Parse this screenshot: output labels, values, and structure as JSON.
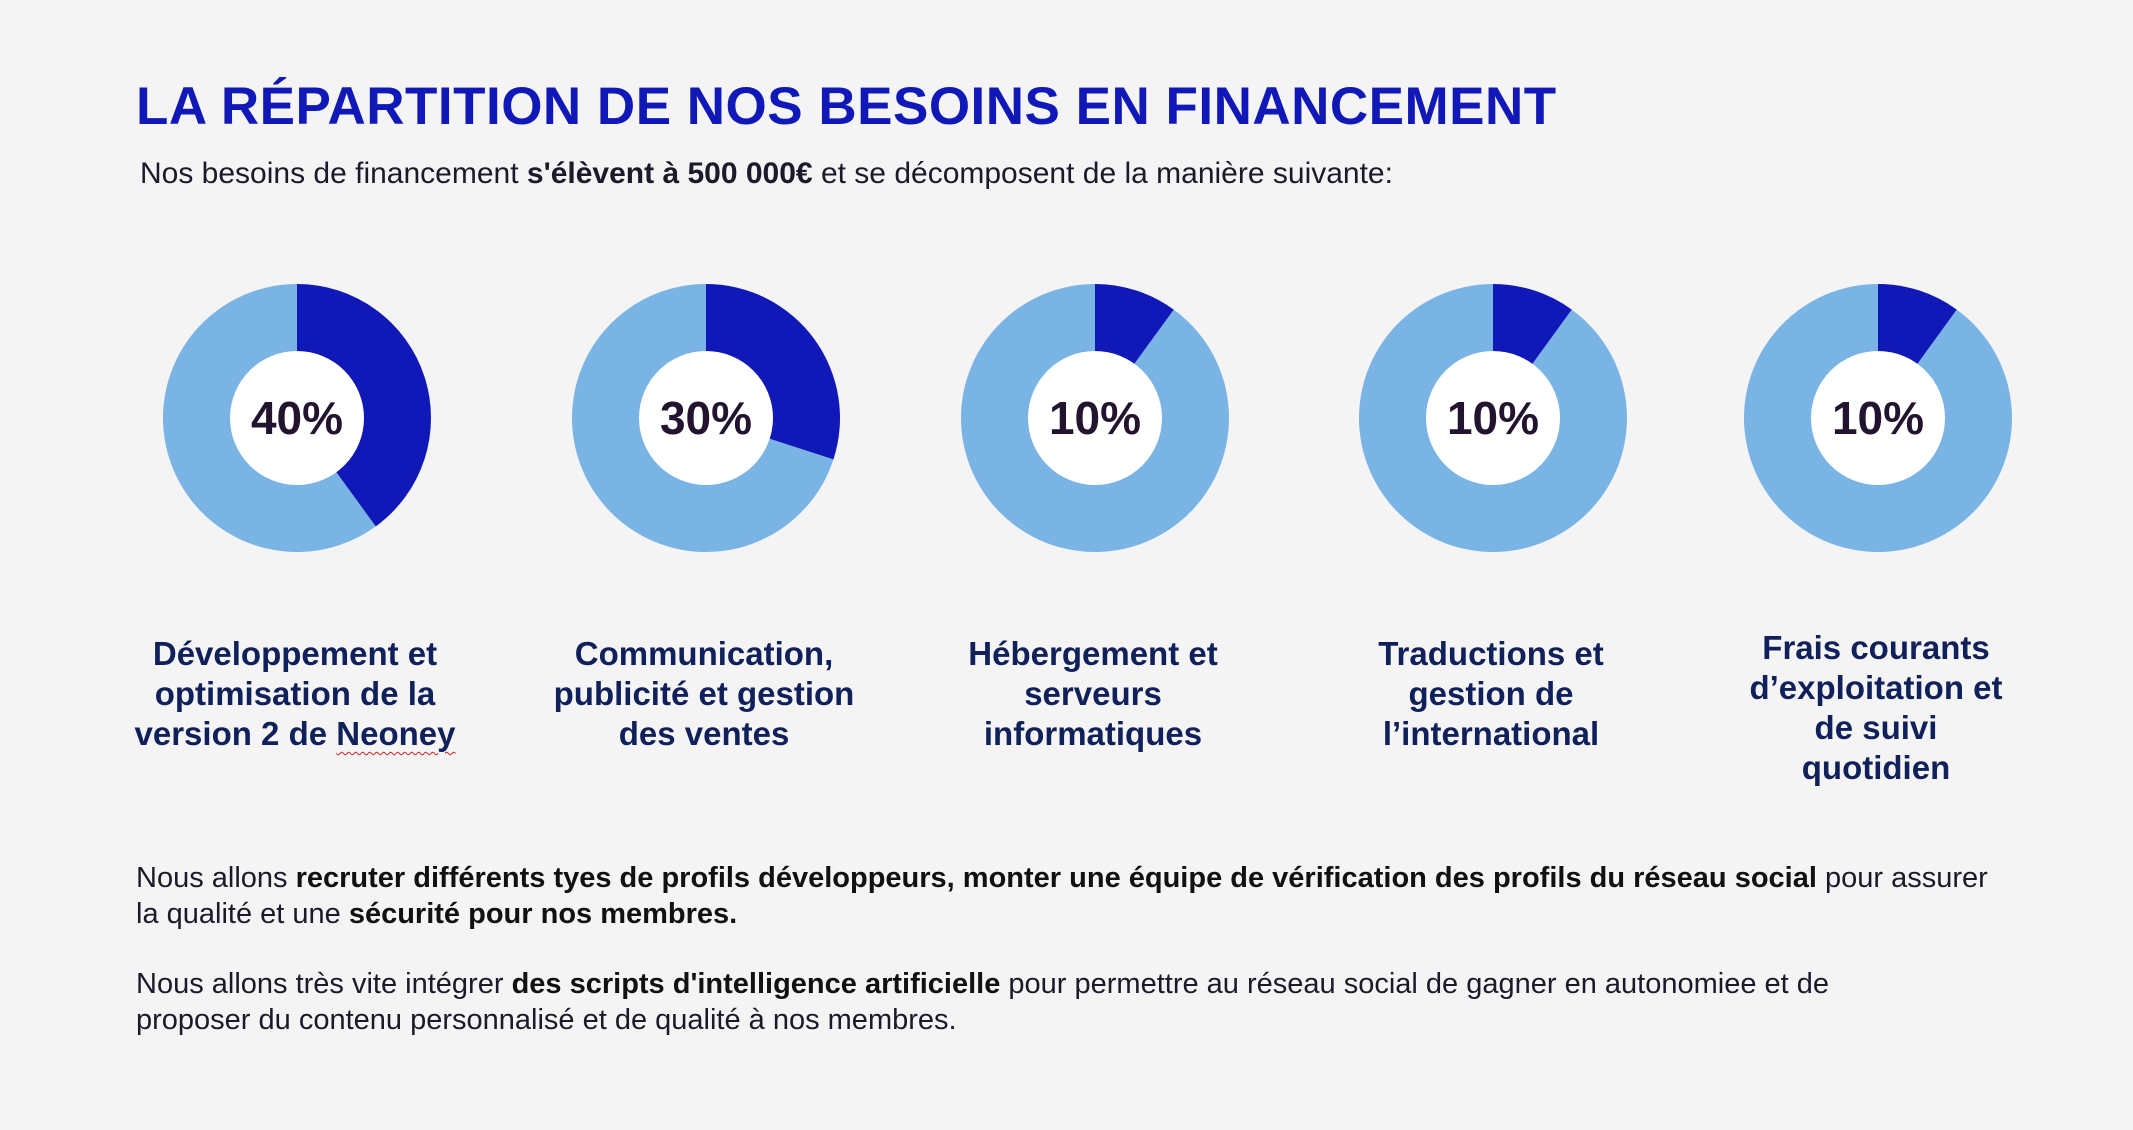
{
  "title": "LA RÉPARTITION DE NOS BESOINS EN FINANCEMENT",
  "subtitle": {
    "before": "Nos besoins de financement ",
    "bold": "s'élèvent à 500 000€",
    "after": " et se décomposent de la manière suivante:"
  },
  "colors": {
    "title": "#1018b8",
    "share": "#1018b8",
    "remainder": "#7ab4e4",
    "hole": "#ffffff",
    "label": "#10205a"
  },
  "chart_data": {
    "type": "pie",
    "categories": [
      "Développement et optimisation de la version 2 de Neoney",
      "Communication, publicité et gestion des ventes",
      "Hébergement et serveurs informatiques",
      "Traductions et gestion de l’international",
      "Frais courants d’exploitation et de suivi quotidien"
    ],
    "values": [
      40,
      30,
      10,
      10,
      10
    ],
    "value_labels": [
      "40%",
      "30%",
      "10%",
      "10%",
      "10%"
    ],
    "label_lines": [
      [
        "Développement et",
        "optimisation de la",
        "version 2 de Neoney"
      ],
      [
        "Communication,",
        "publicité et gestion",
        "des ventes"
      ],
      [
        "Hébergement et",
        "serveurs",
        "informatiques"
      ],
      [
        "Traductions et",
        "gestion de",
        "l’international"
      ],
      [
        "Frais courants",
        "d’exploitation et",
        "de suivi",
        "quotidien"
      ]
    ]
  },
  "paragraph1": {
    "t1": "Nous allons ",
    "b1": "recruter différents tyes de profils développeurs, monter une équipe de vérification des profils du réseau social",
    "t2": " pour assurer la qualité et une ",
    "b2": "sécurité pour nos membres."
  },
  "paragraph2": {
    "t1": "Nous allons très vite intégrer ",
    "b1": "des scripts d'intelligence artificielle",
    "t2": " pour permettre au réseau social de gagner en autonomiee et de proposer du contenu personnalisé et de qualité à nos membres."
  }
}
